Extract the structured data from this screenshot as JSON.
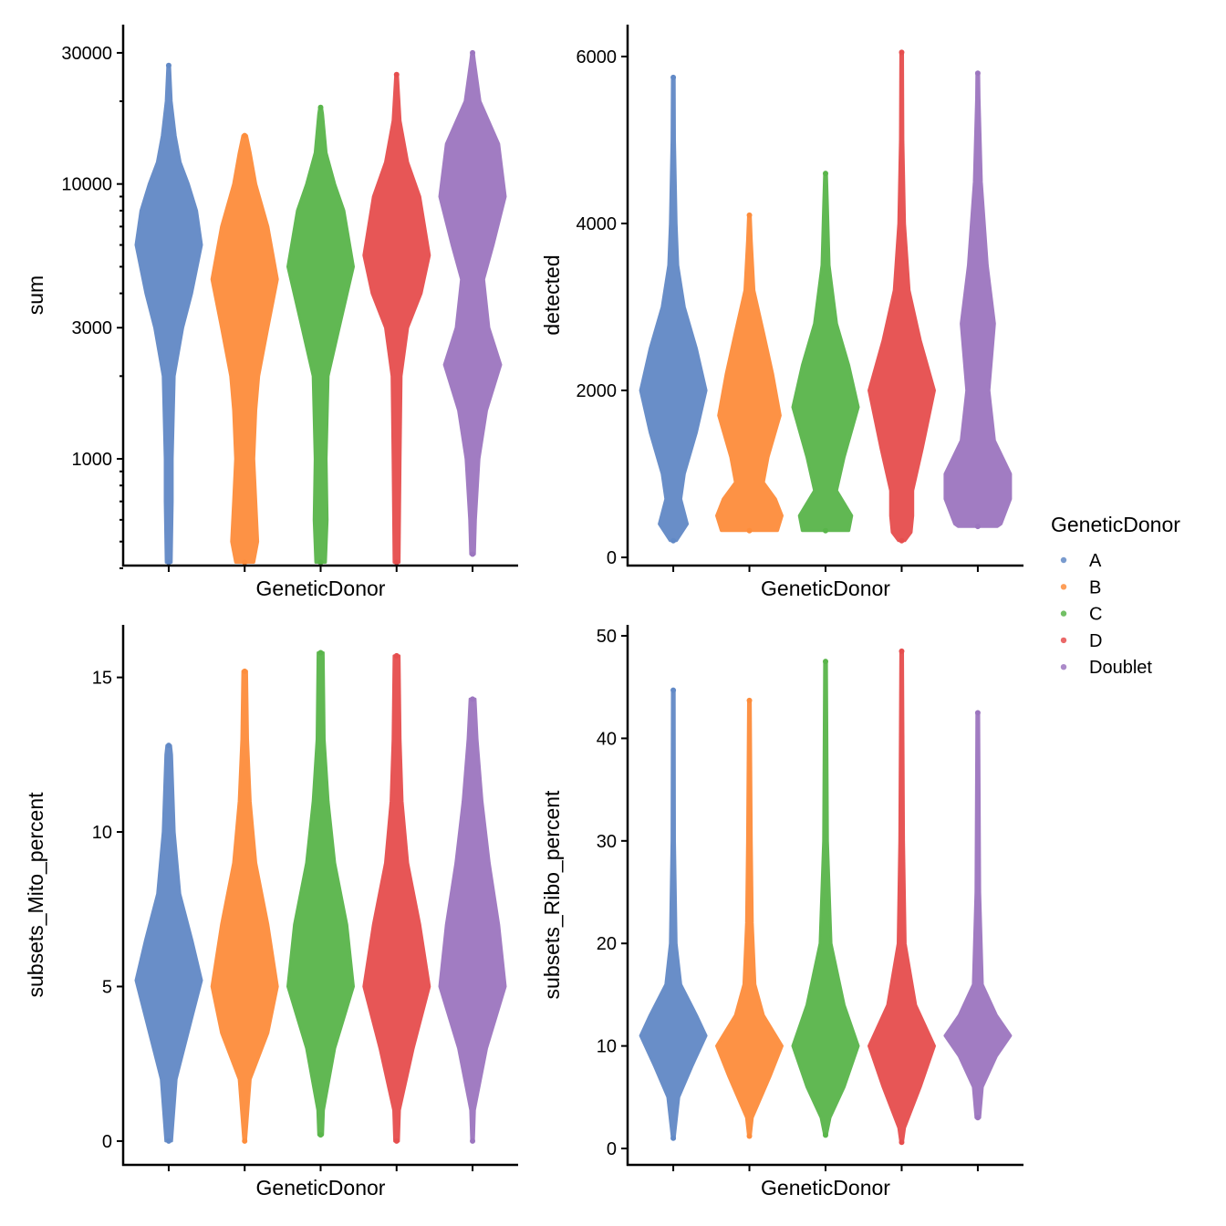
{
  "legend": {
    "title": "GeneticDonor",
    "position": "right",
    "entries": [
      "A",
      "B",
      "C",
      "D",
      "Doublet"
    ]
  },
  "colors": {
    "A": "#6189c6",
    "B": "#fd8d3c",
    "C": "#59b54a",
    "D": "#e64e4e",
    "Doublet": "#9c76bf"
  },
  "chart_data": [
    {
      "type": "violin",
      "xlabel": "GeneticDonor",
      "ylabel": "sum",
      "yscale": "log10",
      "ylim": [
        409,
        38000
      ],
      "yticks": [
        1000,
        3000,
        10000,
        30000
      ],
      "yminor_ticks": [
        400,
        500,
        600,
        700,
        800,
        900,
        2000,
        4000,
        5000,
        6000,
        7000,
        8000,
        9000,
        20000
      ],
      "categories": [
        "A",
        "B",
        "C",
        "D",
        "Doublet"
      ],
      "series": [
        {
          "group": "A",
          "min": 420,
          "max": 27000,
          "density": [
            [
              420,
              0.08
            ],
            [
              700,
              0.11
            ],
            [
              1000,
              0.11
            ],
            [
              2000,
              0.17
            ],
            [
              3000,
              0.43
            ],
            [
              4000,
              0.7
            ],
            [
              6000,
              1.0
            ],
            [
              8000,
              0.85
            ],
            [
              10000,
              0.6
            ],
            [
              12000,
              0.35
            ],
            [
              15000,
              0.2
            ],
            [
              20000,
              0.08
            ],
            [
              27000,
              0.03
            ]
          ]
        },
        {
          "group": "B",
          "min": 420,
          "max": 15000,
          "density": [
            [
              420,
              0.28
            ],
            [
              500,
              0.4
            ],
            [
              700,
              0.34
            ],
            [
              1000,
              0.28
            ],
            [
              1500,
              0.34
            ],
            [
              2000,
              0.43
            ],
            [
              3000,
              0.71
            ],
            [
              4500,
              1.0
            ],
            [
              7000,
              0.71
            ],
            [
              10000,
              0.34
            ],
            [
              13000,
              0.17
            ],
            [
              15000,
              0.06
            ]
          ]
        },
        {
          "group": "C",
          "min": 420,
          "max": 19000,
          "density": [
            [
              420,
              0.15
            ],
            [
              600,
              0.2
            ],
            [
              1000,
              0.17
            ],
            [
              2000,
              0.23
            ],
            [
              3000,
              0.57
            ],
            [
              5000,
              1.0
            ],
            [
              8000,
              0.71
            ],
            [
              10000,
              0.43
            ],
            [
              13000,
              0.17
            ],
            [
              18000,
              0.06
            ],
            [
              19000,
              0.03
            ]
          ]
        },
        {
          "group": "D",
          "min": 420,
          "max": 25000,
          "density": [
            [
              420,
              0.08
            ],
            [
              1000,
              0.11
            ],
            [
              2000,
              0.14
            ],
            [
              3000,
              0.34
            ],
            [
              4000,
              0.75
            ],
            [
              5500,
              1.0
            ],
            [
              9000,
              0.71
            ],
            [
              12000,
              0.34
            ],
            [
              17000,
              0.11
            ],
            [
              25000,
              0.03
            ]
          ]
        },
        {
          "group": "Doublet",
          "min": 450,
          "max": 30000,
          "density": [
            [
              450,
              0.06
            ],
            [
              600,
              0.09
            ],
            [
              1000,
              0.2
            ],
            [
              1500,
              0.43
            ],
            [
              2200,
              0.86
            ],
            [
              3000,
              0.5
            ],
            [
              4500,
              0.34
            ],
            [
              6000,
              0.63
            ],
            [
              9000,
              1.0
            ],
            [
              14000,
              0.8
            ],
            [
              20000,
              0.23
            ],
            [
              28000,
              0.06
            ],
            [
              30000,
              0.03
            ]
          ]
        }
      ]
    },
    {
      "type": "violin",
      "xlabel": "GeneticDonor",
      "ylabel": "detected",
      "yscale": "linear",
      "ylim": [
        -98,
        6382
      ],
      "yticks": [
        0,
        2000,
        4000,
        6000
      ],
      "categories": [
        "A",
        "B",
        "C",
        "D",
        "Doublet"
      ],
      "series": [
        {
          "group": "A",
          "min": 200,
          "max": 5750,
          "density": [
            [
              200,
              0.1
            ],
            [
              400,
              0.43
            ],
            [
              700,
              0.23
            ],
            [
              1000,
              0.34
            ],
            [
              1500,
              0.71
            ],
            [
              2000,
              1.0
            ],
            [
              2500,
              0.71
            ],
            [
              3000,
              0.34
            ],
            [
              3500,
              0.14
            ],
            [
              4000,
              0.09
            ],
            [
              5000,
              0.04
            ],
            [
              5750,
              0.03
            ]
          ]
        },
        {
          "group": "B",
          "min": 320,
          "max": 4100,
          "density": [
            [
              320,
              0.86
            ],
            [
              500,
              1.0
            ],
            [
              700,
              0.8
            ],
            [
              900,
              0.43
            ],
            [
              1200,
              0.57
            ],
            [
              1700,
              0.94
            ],
            [
              2200,
              0.71
            ],
            [
              2700,
              0.43
            ],
            [
              3200,
              0.14
            ],
            [
              3800,
              0.06
            ],
            [
              4100,
              0.03
            ]
          ]
        },
        {
          "group": "C",
          "min": 320,
          "max": 4600,
          "density": [
            [
              320,
              0.71
            ],
            [
              500,
              0.8
            ],
            [
              800,
              0.34
            ],
            [
              1200,
              0.57
            ],
            [
              1800,
              1.0
            ],
            [
              2300,
              0.71
            ],
            [
              2800,
              0.34
            ],
            [
              3500,
              0.11
            ],
            [
              4200,
              0.06
            ],
            [
              4600,
              0.03
            ]
          ]
        },
        {
          "group": "D",
          "min": 200,
          "max": 6050,
          "density": [
            [
              200,
              0.1
            ],
            [
              300,
              0.29
            ],
            [
              500,
              0.34
            ],
            [
              800,
              0.34
            ],
            [
              1300,
              0.63
            ],
            [
              2000,
              1.0
            ],
            [
              2600,
              0.57
            ],
            [
              3200,
              0.23
            ],
            [
              4000,
              0.09
            ],
            [
              5000,
              0.04
            ],
            [
              6050,
              0.03
            ]
          ]
        },
        {
          "group": "Doublet",
          "min": 370,
          "max": 5800,
          "density": [
            [
              370,
              0.6
            ],
            [
              400,
              0.71
            ],
            [
              700,
              1.0
            ],
            [
              1000,
              1.0
            ],
            [
              1400,
              0.51
            ],
            [
              2000,
              0.34
            ],
            [
              2800,
              0.51
            ],
            [
              3500,
              0.29
            ],
            [
              4500,
              0.11
            ],
            [
              5500,
              0.04
            ],
            [
              5800,
              0.03
            ]
          ]
        }
      ]
    },
    {
      "type": "violin",
      "xlabel": "GeneticDonor",
      "ylabel": "subsets_Mito_percent",
      "yscale": "linear",
      "ylim": [
        -0.77,
        16.7
      ],
      "yticks": [
        0,
        5,
        10,
        15
      ],
      "categories": [
        "A",
        "B",
        "C",
        "D",
        "Doublet"
      ],
      "series": [
        {
          "group": "A",
          "min": 0,
          "max": 12.8,
          "density": [
            [
              0,
              0.09
            ],
            [
              2,
              0.23
            ],
            [
              4,
              0.71
            ],
            [
              5.2,
              1.0
            ],
            [
              6.5,
              0.71
            ],
            [
              8,
              0.34
            ],
            [
              10,
              0.17
            ],
            [
              12.5,
              0.09
            ],
            [
              12.8,
              0.06
            ]
          ]
        },
        {
          "group": "B",
          "min": 0,
          "max": 15.2,
          "density": [
            [
              0,
              0.03
            ],
            [
              2,
              0.17
            ],
            [
              3.5,
              0.71
            ],
            [
              5,
              1.0
            ],
            [
              7,
              0.71
            ],
            [
              9,
              0.34
            ],
            [
              11,
              0.17
            ],
            [
              13,
              0.09
            ],
            [
              15.2,
              0.06
            ]
          ]
        },
        {
          "group": "C",
          "min": 0.2,
          "max": 15.8,
          "density": [
            [
              0.2,
              0.06
            ],
            [
              1,
              0.09
            ],
            [
              3,
              0.43
            ],
            [
              5,
              1.0
            ],
            [
              7,
              0.8
            ],
            [
              9,
              0.43
            ],
            [
              11,
              0.23
            ],
            [
              13,
              0.11
            ],
            [
              15.8,
              0.08
            ]
          ]
        },
        {
          "group": "D",
          "min": 0,
          "max": 15.7,
          "density": [
            [
              0,
              0.06
            ],
            [
              1,
              0.09
            ],
            [
              3,
              0.51
            ],
            [
              5,
              1.0
            ],
            [
              7,
              0.71
            ],
            [
              9,
              0.34
            ],
            [
              11,
              0.17
            ],
            [
              13,
              0.11
            ],
            [
              15.7,
              0.08
            ]
          ]
        },
        {
          "group": "Doublet",
          "min": 0,
          "max": 14.3,
          "density": [
            [
              0,
              0.03
            ],
            [
              1,
              0.06
            ],
            [
              3,
              0.43
            ],
            [
              5,
              1.0
            ],
            [
              7,
              0.8
            ],
            [
              9,
              0.51
            ],
            [
              11,
              0.29
            ],
            [
              13,
              0.14
            ],
            [
              14.3,
              0.08
            ]
          ]
        }
      ]
    },
    {
      "type": "violin",
      "xlabel": "GeneticDonor",
      "ylabel": "subsets_Ribo_percent",
      "yscale": "linear",
      "ylim": [
        -1.6,
        51.07
      ],
      "yticks": [
        0,
        10,
        20,
        30,
        40,
        50
      ],
      "categories": [
        "A",
        "B",
        "C",
        "D",
        "Doublet"
      ],
      "series": [
        {
          "group": "A",
          "min": 1,
          "max": 44.7,
          "density": [
            [
              1,
              0.03
            ],
            [
              5,
              0.17
            ],
            [
              8,
              0.57
            ],
            [
              11,
              1.0
            ],
            [
              13,
              0.71
            ],
            [
              16,
              0.23
            ],
            [
              20,
              0.09
            ],
            [
              30,
              0.04
            ],
            [
              44.7,
              0.03
            ]
          ]
        },
        {
          "group": "B",
          "min": 1.2,
          "max": 43.7,
          "density": [
            [
              1.2,
              0.03
            ],
            [
              3,
              0.09
            ],
            [
              7,
              0.63
            ],
            [
              10,
              1.0
            ],
            [
              13,
              0.43
            ],
            [
              16,
              0.17
            ],
            [
              22,
              0.09
            ],
            [
              30,
              0.06
            ],
            [
              43.7,
              0.03
            ]
          ]
        },
        {
          "group": "C",
          "min": 1.3,
          "max": 47.5,
          "density": [
            [
              1.3,
              0.03
            ],
            [
              3,
              0.14
            ],
            [
              6,
              0.57
            ],
            [
              10,
              1.0
            ],
            [
              14,
              0.57
            ],
            [
              20,
              0.17
            ],
            [
              30,
              0.06
            ],
            [
              47.5,
              0.03
            ]
          ]
        },
        {
          "group": "D",
          "min": 0.6,
          "max": 48.5,
          "density": [
            [
              0.6,
              0.03
            ],
            [
              2,
              0.09
            ],
            [
              6,
              0.57
            ],
            [
              10,
              1.0
            ],
            [
              14,
              0.43
            ],
            [
              20,
              0.11
            ],
            [
              30,
              0.06
            ],
            [
              48.5,
              0.03
            ]
          ]
        },
        {
          "group": "Doublet",
          "min": 3,
          "max": 42.5,
          "density": [
            [
              3,
              0.06
            ],
            [
              6,
              0.14
            ],
            [
              9,
              0.57
            ],
            [
              11,
              1.0
            ],
            [
              13,
              0.57
            ],
            [
              16,
              0.14
            ],
            [
              25,
              0.06
            ],
            [
              42.5,
              0.03
            ]
          ]
        }
      ]
    }
  ]
}
